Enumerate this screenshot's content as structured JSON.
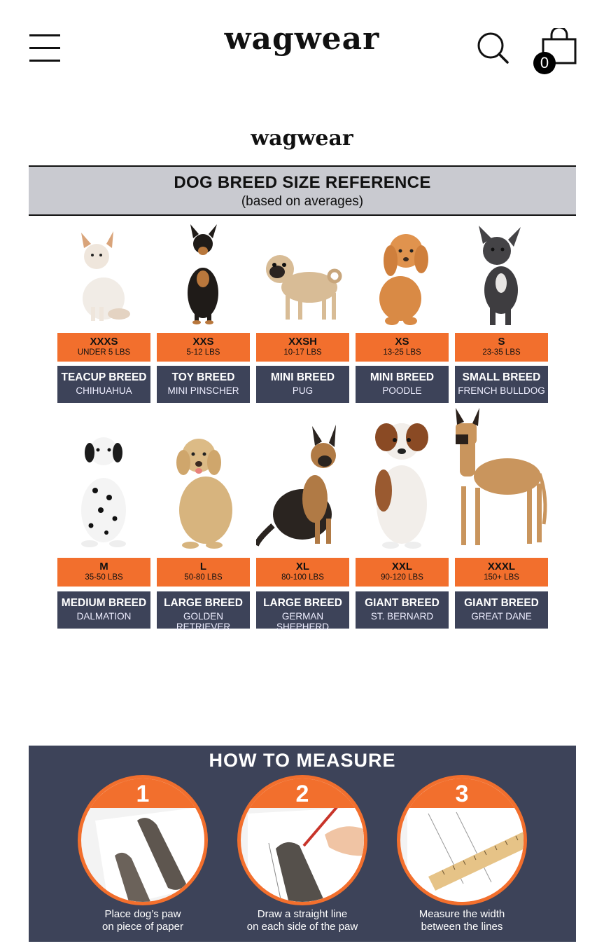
{
  "header": {
    "brand": "wagwear",
    "cart_count": "0"
  },
  "panel": {
    "brand": "wagwear",
    "title": "DOG BREED SIZE REFERENCE",
    "subtitle": "(based on averages)"
  },
  "dogs": [
    {
      "size": "XXXS",
      "weight": "UNDER 5 LBS",
      "breed_type": "TEACUP BREED",
      "breed": "CHIHUAHUA"
    },
    {
      "size": "XXS",
      "weight": "5-12 LBS",
      "breed_type": "TOY BREED",
      "breed": "MINI PINSCHER"
    },
    {
      "size": "XXSH",
      "weight": "10-17 LBS",
      "breed_type": "MINI BREED",
      "breed": "PUG"
    },
    {
      "size": "XS",
      "weight": "13-25 LBS",
      "breed_type": "MINI BREED",
      "breed": "POODLE"
    },
    {
      "size": "S",
      "weight": "23-35 LBS",
      "breed_type": "SMALL BREED",
      "breed": "FRENCH BULLDOG"
    },
    {
      "size": "M",
      "weight": "35-50 LBS",
      "breed_type": "MEDIUM BREED",
      "breed": "DALMATION"
    },
    {
      "size": "L",
      "weight": "50-80 LBS",
      "breed_type": "LARGE BREED",
      "breed": "GOLDEN RETRIEVER"
    },
    {
      "size": "XL",
      "weight": "80-100 LBS",
      "breed_type": "LARGE BREED",
      "breed": "GERMAN SHEPHERD"
    },
    {
      "size": "XXL",
      "weight": "90-120 LBS",
      "breed_type": "GIANT BREED",
      "breed": "ST. BERNARD"
    },
    {
      "size": "XXXL",
      "weight": "150+ LBS",
      "breed_type": "GIANT BREED",
      "breed": "GREAT DANE"
    }
  ],
  "measure": {
    "title": "HOW TO MEASURE",
    "steps": [
      {
        "num": "1",
        "line1": "Place dog’s paw",
        "line2": "on piece of paper"
      },
      {
        "num": "2",
        "line1": "Draw a straight line",
        "line2": "on each side of the paw"
      },
      {
        "num": "3",
        "line1": "Measure the width",
        "line2": "between the lines"
      }
    ]
  },
  "colors": {
    "orange": "#f26f2d",
    "navy": "#3d4359",
    "header_gray": "#c9cad0"
  },
  "icons": [
    "menu-icon",
    "search-icon",
    "shopping-bag-icon"
  ]
}
